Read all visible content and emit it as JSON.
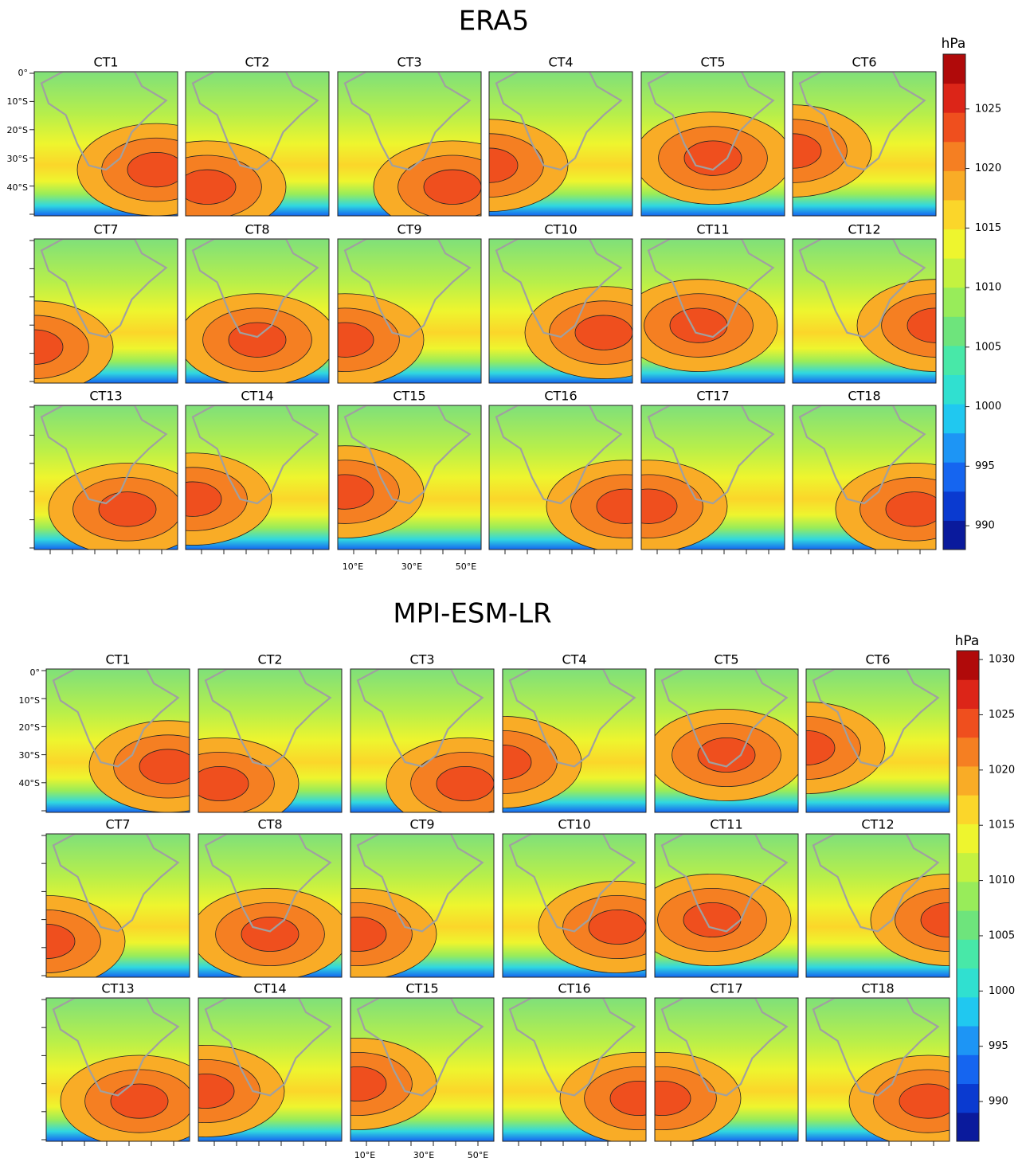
{
  "panels": [
    {
      "title": "ERA5",
      "unit": "hPa",
      "maps": [
        "CT1",
        "CT2",
        "CT3",
        "CT4",
        "CT5",
        "CT6",
        "CT7",
        "CT8",
        "CT9",
        "CT10",
        "CT11",
        "CT12",
        "CT13",
        "CT14",
        "CT15",
        "CT16",
        "CT17",
        "CT18"
      ],
      "y_labels": [
        "0°",
        "10°S",
        "20°S",
        "30°S",
        "40°S"
      ],
      "x_labels": [
        "10°E",
        "30°E",
        "50°E"
      ],
      "colorbar_labels": [
        1025,
        1020,
        1015,
        1010,
        1005,
        1000,
        995,
        990
      ]
    },
    {
      "title": "MPI-ESM-LR",
      "unit": "hPa",
      "maps": [
        "CT1",
        "CT2",
        "CT3",
        "CT4",
        "CT5",
        "CT6",
        "CT7",
        "CT8",
        "CT9",
        "CT10",
        "CT11",
        "CT12",
        "CT13",
        "CT14",
        "CT15",
        "CT16",
        "CT17",
        "CT18"
      ],
      "y_labels": [
        "0°",
        "10°S",
        "20°S",
        "30°S",
        "40°S"
      ],
      "x_labels": [
        "10°E",
        "30°E",
        "50°E"
      ],
      "colorbar_labels": [
        1030,
        1025,
        1020,
        1015,
        1010,
        1005,
        1000,
        995,
        990
      ]
    }
  ]
}
